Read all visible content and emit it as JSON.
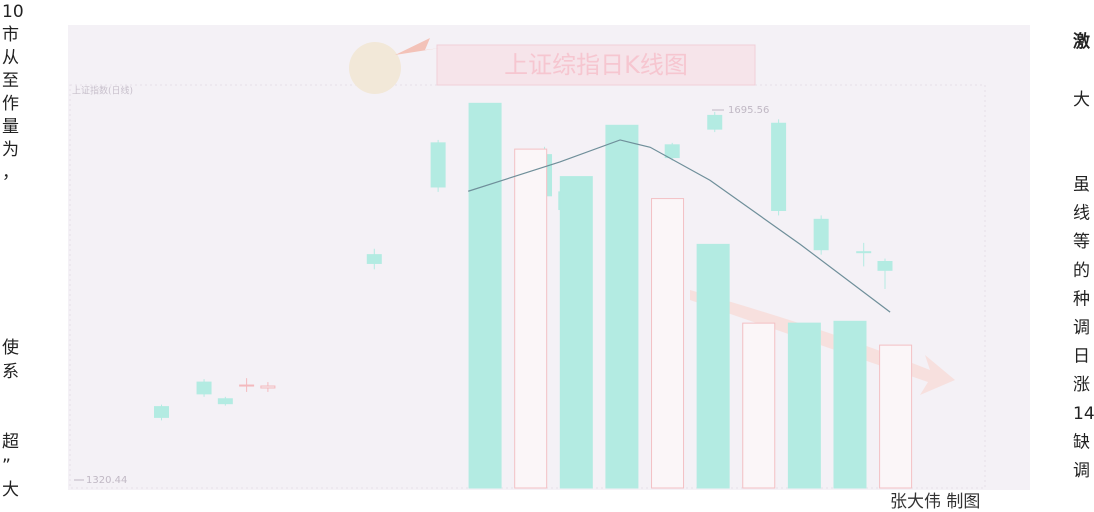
{
  "left_column": [
    "10",
    "市",
    "从",
    "至",
    "作",
    "量",
    "为",
    "，",
    "使",
    "系",
    "超",
    "”",
    "大"
  ],
  "right_column": {
    "heading": "激",
    "byline": "大",
    "lines": [
      "虽",
      "线",
      "等",
      "的",
      "种",
      "调",
      "日",
      "涨",
      "14",
      "缺",
      "调"
    ]
  },
  "credit": "张大伟 制图",
  "chart_data": [
    {
      "type": "candlestick",
      "title": "上证综指日K线图",
      "subtitle": "上证指数(日线)",
      "annotations": [
        "1695.56",
        "1320.44"
      ],
      "x": [
        0,
        2,
        3,
        4,
        5,
        10,
        13,
        18,
        19,
        24,
        26,
        29,
        31,
        33,
        34
      ],
      "open": [
        1395,
        1420,
        1403,
        1417,
        1414,
        1550,
        1664,
        1652,
        1614,
        1662,
        1692,
        1684,
        1586,
        1553,
        1543
      ],
      "close": [
        1384,
        1408,
        1398,
        1417,
        1416,
        1541,
        1619,
        1610,
        1596,
        1649,
        1678,
        1595,
        1555,
        1552,
        1534
      ],
      "high": [
        1397,
        1423,
        1405,
        1424,
        1420,
        1556,
        1667,
        1660,
        1618,
        1664,
        1695.56,
        1688,
        1590,
        1562,
        1546
      ],
      "low": [
        1381,
        1405,
        1396,
        1410,
        1410,
        1535,
        1614,
        1605,
        1570,
        1646,
        1675,
        1590,
        1550,
        1538,
        1515
      ],
      "up_color": "#f3b9bd",
      "down_color": "#b3ebe2",
      "xlim": [
        -4.3,
        38.7
      ],
      "ylim": [
        1312,
        1723
      ]
    },
    {
      "type": "bar",
      "x": [
        0,
        1,
        2,
        3,
        4,
        5,
        6,
        7,
        8,
        9
      ],
      "values": [
        210,
        185,
        170,
        198,
        158,
        133,
        90,
        90,
        91,
        78
      ],
      "hollow": [
        false,
        true,
        false,
        false,
        true,
        false,
        true,
        false,
        false,
        true
      ],
      "color": "#b3ebe2",
      "hollow_color": "#f3c0c4",
      "line": {
        "x": [
          -0.37,
          1.64,
          2.96,
          3.62,
          4.93,
          6.91,
          8.88
        ],
        "values": [
          162,
          178,
          190,
          186,
          168,
          133,
          96
        ],
        "color": "#6f8f9a"
      },
      "xlim": [
        -9.1,
        10.96
      ],
      "ylim": [
        0,
        220
      ]
    }
  ]
}
